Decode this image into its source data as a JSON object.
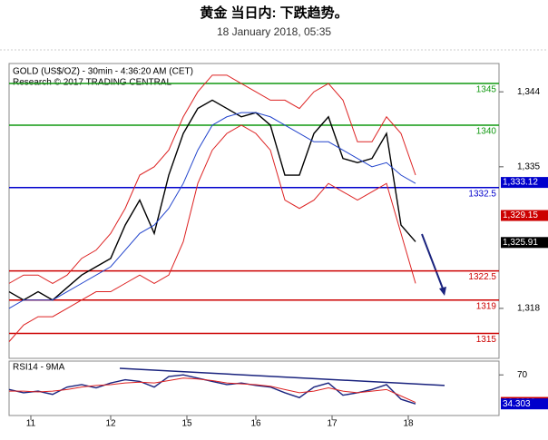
{
  "title": "黄金 当日内: 下跌趋势。",
  "subtitle": "18 January 2018, 05:35",
  "chart_data": [
    {
      "type": "line",
      "label": "GOLD (US$/OZ) - 30min - 4:36:20 AM (CET)",
      "note": "Research © 2017 TRADING CENTRAL",
      "x": [
        0,
        4,
        8,
        12,
        16,
        20,
        24,
        28,
        32,
        36,
        40,
        44,
        48,
        52,
        56,
        60,
        64,
        68,
        72,
        76,
        80,
        84,
        88,
        92,
        96,
        100,
        104,
        108,
        112
      ],
      "series": [
        {
          "color": "#000000",
          "values": [
            1320,
            1319,
            1320,
            1319,
            1320.5,
            1322,
            1323,
            1324,
            1328,
            1331,
            1327,
            1334,
            1339,
            1342,
            1343,
            1342,
            1341,
            1341.5,
            1340,
            1334,
            1334,
            1339,
            1341,
            1336,
            1335.5,
            1336,
            1339,
            1328,
            1326
          ]
        },
        {
          "color": "#dd2222",
          "values": [
            1321,
            1322,
            1322,
            1321,
            1322,
            1324,
            1325,
            1327,
            1330,
            1334,
            1335,
            1337,
            1341,
            1344,
            1346,
            1346,
            1345,
            1344,
            1343,
            1343,
            1342,
            1344,
            1345,
            1343,
            1338,
            1338,
            1341,
            1339,
            1334
          ]
        },
        {
          "color": "#dd2222",
          "values": [
            1314,
            1316,
            1317,
            1317,
            1318,
            1319,
            1320,
            1320,
            1321,
            1322,
            1321,
            1322,
            1326,
            1333,
            1337,
            1339,
            1340,
            1339,
            1337,
            1331,
            1330,
            1331,
            1333,
            1332,
            1331,
            1332,
            1333,
            1327,
            1321
          ]
        },
        {
          "color": "#2244cc",
          "values": [
            1318,
            1319,
            1319,
            1319,
            1320,
            1321,
            1322,
            1323,
            1325,
            1327,
            1328,
            1330,
            1333,
            1337,
            1340,
            1341,
            1341.5,
            1341.5,
            1341,
            1340,
            1339,
            1338,
            1338,
            1337,
            1336,
            1335,
            1335.5,
            1334,
            1333
          ]
        }
      ],
      "levels": {
        "values": [
          1345,
          1340,
          1332.5,
          1322.5,
          1319,
          1315
        ],
        "colors": [
          "#119911",
          "#119911",
          "#0000cc",
          "#cc0000",
          "#cc0000",
          "#cc0000"
        ]
      },
      "markers": {
        "values": [
          1333.12,
          1329.15,
          1325.91
        ],
        "value_labels": [
          "1,333.12",
          "1,329.15",
          "1,325.91"
        ],
        "colors": [
          "#0000cc",
          "#cc0000",
          "#000000"
        ]
      },
      "xlim": [
        0,
        135
      ],
      "ylim": [
        1312,
        1347.4
      ],
      "yticks": [
        {
          "value": 1344,
          "label": "1,344"
        },
        {
          "value": 1335,
          "label": "1,335"
        },
        {
          "value": 1318,
          "label": "1,318"
        }
      ],
      "xticks": [
        {
          "value": 6,
          "label": "11"
        },
        {
          "value": 28,
          "label": "12"
        },
        {
          "value": 49,
          "label": "15"
        },
        {
          "value": 68,
          "label": "16"
        },
        {
          "value": 89,
          "label": "17"
        },
        {
          "value": 110,
          "label": "18"
        }
      ]
    },
    {
      "type": "line",
      "label": "RSI14 - 9MA",
      "x": [
        0,
        4,
        8,
        12,
        16,
        20,
        24,
        28,
        32,
        36,
        40,
        44,
        48,
        52,
        56,
        60,
        64,
        68,
        72,
        76,
        80,
        84,
        88,
        92,
        96,
        100,
        104,
        108,
        112
      ],
      "series": [
        {
          "color": "#1a237e",
          "values": [
            52,
            48,
            50,
            46,
            55,
            58,
            54,
            60,
            64,
            62,
            55,
            68,
            70,
            66,
            62,
            58,
            60,
            57,
            55,
            48,
            42,
            55,
            60,
            45,
            48,
            52,
            58,
            40,
            34.303
          ]
        },
        {
          "color": "#dd2222",
          "values": [
            50,
            50,
            49,
            50,
            52,
            55,
            57,
            58,
            60,
            61,
            60,
            63,
            66,
            65,
            63,
            60,
            59,
            58,
            56,
            52,
            48,
            50,
            54,
            50,
            48,
            50,
            52,
            44,
            36.0802
          ]
        }
      ],
      "trendline": {
        "x": [
          30.5,
          120
        ],
        "y": [
          78,
          57
        ],
        "color": "#1a237e"
      },
      "markers": {
        "values": [
          36.0802,
          34.303
        ],
        "colors": [
          "#cc0000",
          "#0000cc"
        ]
      },
      "xlim": [
        0,
        135
      ],
      "ylim": [
        20,
        87
      ],
      "yticks": [
        70
      ]
    }
  ]
}
